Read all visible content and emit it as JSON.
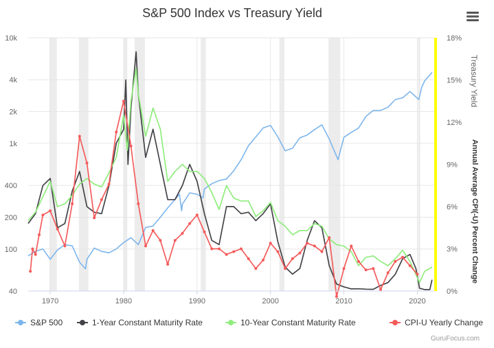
{
  "chart_data": {
    "type": "line",
    "title": "S&P 500 Index vs Treasury Yield",
    "credit": "GuruFocus.com",
    "menu_icon": "hamburger-menu-icon",
    "x_axis": {
      "range": [
        1967,
        2022.3
      ],
      "ticks": [
        "1970",
        "1980",
        "1990",
        "2000",
        "2010",
        "2020"
      ]
    },
    "y_left": {
      "scale": "log",
      "range": [
        40,
        10000
      ],
      "ticks": [
        "10k",
        "4k",
        "2k",
        "1k",
        "400",
        "200",
        "100",
        "40"
      ]
    },
    "y_right": {
      "scale": "linear",
      "range": [
        0,
        18
      ],
      "ticks": [
        "18%",
        "15%",
        "12%",
        "9%",
        "6%",
        "3%",
        "0%"
      ],
      "title": "Treasury Yield"
    },
    "y_right2": {
      "title": "Annual Average CPI(-U) Percent Change",
      "color": "#ffff00"
    },
    "recessions": [
      [
        1969.9,
        1970.9
      ],
      [
        1973.9,
        1975.2
      ],
      [
        1980.0,
        1980.5
      ],
      [
        1981.5,
        1982.9
      ],
      [
        1990.5,
        1991.2
      ],
      [
        2001.2,
        2001.9
      ],
      [
        2007.9,
        2009.5
      ],
      [
        2020.1,
        2020.4
      ]
    ],
    "grid": true,
    "legend": "bottom",
    "series": [
      {
        "name": "S&P 500",
        "axis": "left",
        "color": "#7cb5ec",
        "points": [
          [
            1967,
            86
          ],
          [
            1968,
            95
          ],
          [
            1969,
            100
          ],
          [
            1970,
            80
          ],
          [
            1971,
            98
          ],
          [
            1972,
            110
          ],
          [
            1973,
            107
          ],
          [
            1974,
            75
          ],
          [
            1974.8,
            65
          ],
          [
            1975,
            80
          ],
          [
            1976,
            102
          ],
          [
            1977,
            95
          ],
          [
            1978,
            92
          ],
          [
            1979,
            100
          ],
          [
            1980,
            115
          ],
          [
            1981,
            128
          ],
          [
            1982,
            110
          ],
          [
            1983,
            160
          ],
          [
            1984,
            165
          ],
          [
            1985,
            200
          ],
          [
            1986,
            245
          ],
          [
            1987.6,
            330
          ],
          [
            1987.9,
            230
          ],
          [
            1988,
            265
          ],
          [
            1989,
            340
          ],
          [
            1990,
            330
          ],
          [
            1990.8,
            305
          ],
          [
            1991,
            370
          ],
          [
            1992,
            415
          ],
          [
            1993,
            445
          ],
          [
            1994,
            460
          ],
          [
            1995,
            550
          ],
          [
            1996,
            700
          ],
          [
            1997,
            950
          ],
          [
            1998,
            1150
          ],
          [
            1999,
            1400
          ],
          [
            2000,
            1480
          ],
          [
            2001,
            1150
          ],
          [
            2002,
            850
          ],
          [
            2003,
            900
          ],
          [
            2004,
            1130
          ],
          [
            2005,
            1200
          ],
          [
            2006,
            1350
          ],
          [
            2007,
            1500
          ],
          [
            2008,
            1100
          ],
          [
            2009.2,
            700
          ],
          [
            2010,
            1140
          ],
          [
            2011,
            1270
          ],
          [
            2012,
            1400
          ],
          [
            2013,
            1800
          ],
          [
            2014,
            2050
          ],
          [
            2015,
            2050
          ],
          [
            2016,
            2200
          ],
          [
            2017,
            2600
          ],
          [
            2018,
            2700
          ],
          [
            2019,
            3100
          ],
          [
            2020.2,
            2600
          ],
          [
            2020.6,
            3400
          ],
          [
            2021,
            3900
          ],
          [
            2022,
            4700
          ]
        ]
      },
      {
        "name": "1-Year Constant Maturity Rate",
        "axis": "right",
        "color": "#434348",
        "points": [
          [
            1967,
            4.8
          ],
          [
            1968,
            5.5
          ],
          [
            1969,
            7.5
          ],
          [
            1970,
            8.0
          ],
          [
            1971,
            4.5
          ],
          [
            1972,
            4.8
          ],
          [
            1973,
            7.1
          ],
          [
            1974,
            8.5
          ],
          [
            1975,
            6.0
          ],
          [
            1976,
            5.6
          ],
          [
            1977,
            5.5
          ],
          [
            1978,
            7.5
          ],
          [
            1979,
            10.5
          ],
          [
            1980,
            11.5
          ],
          [
            1980.3,
            15.0
          ],
          [
            1980.6,
            9.0
          ],
          [
            1981,
            13.0
          ],
          [
            1981.7,
            17.0
          ],
          [
            1982,
            14.0
          ],
          [
            1983,
            9.5
          ],
          [
            1984,
            11.5
          ],
          [
            1985,
            9.0
          ],
          [
            1986,
            6.5
          ],
          [
            1987,
            6.5
          ],
          [
            1988,
            7.5
          ],
          [
            1989,
            9.0
          ],
          [
            1990,
            7.8
          ],
          [
            1991,
            5.5
          ],
          [
            1992,
            3.6
          ],
          [
            1993,
            3.3
          ],
          [
            1994,
            6.0
          ],
          [
            1995,
            6.0
          ],
          [
            1996,
            5.5
          ],
          [
            1997,
            5.6
          ],
          [
            1998,
            5.0
          ],
          [
            1999,
            5.5
          ],
          [
            2000,
            6.2
          ],
          [
            2001,
            3.5
          ],
          [
            2002,
            1.7
          ],
          [
            2003,
            1.2
          ],
          [
            2004,
            1.6
          ],
          [
            2005,
            3.6
          ],
          [
            2006,
            5.0
          ],
          [
            2007,
            4.5
          ],
          [
            2008,
            1.8
          ],
          [
            2009,
            0.5
          ],
          [
            2010,
            0.3
          ],
          [
            2011,
            0.15
          ],
          [
            2012,
            0.16
          ],
          [
            2013,
            0.13
          ],
          [
            2014,
            0.12
          ],
          [
            2015,
            0.4
          ],
          [
            2016,
            0.6
          ],
          [
            2017,
            1.2
          ],
          [
            2018,
            2.3
          ],
          [
            2019,
            2.6
          ],
          [
            2019.8,
            1.6
          ],
          [
            2020.3,
            0.2
          ],
          [
            2021,
            0.1
          ],
          [
            2021.7,
            0.1
          ],
          [
            2022,
            0.8
          ]
        ]
      },
      {
        "name": "10-Year Constant Maturity Rate",
        "axis": "right",
        "color": "#90ed7d",
        "points": [
          [
            1967,
            5.0
          ],
          [
            1968,
            5.6
          ],
          [
            1969,
            6.7
          ],
          [
            1970,
            7.8
          ],
          [
            1971,
            6.0
          ],
          [
            1972,
            6.2
          ],
          [
            1973,
            6.8
          ],
          [
            1974,
            7.6
          ],
          [
            1975,
            8.0
          ],
          [
            1976,
            7.6
          ],
          [
            1977,
            7.4
          ],
          [
            1978,
            8.4
          ],
          [
            1979,
            9.5
          ],
          [
            1980,
            12.5
          ],
          [
            1980.5,
            10.0
          ],
          [
            1981,
            13.5
          ],
          [
            1981.7,
            15.8
          ],
          [
            1982,
            14.0
          ],
          [
            1983,
            11.0
          ],
          [
            1984,
            13.0
          ],
          [
            1985,
            11.5
          ],
          [
            1986,
            7.8
          ],
          [
            1987,
            8.5
          ],
          [
            1988,
            9.0
          ],
          [
            1989,
            8.5
          ],
          [
            1990,
            8.5
          ],
          [
            1991,
            8.0
          ],
          [
            1992,
            7.0
          ],
          [
            1993,
            5.8
          ],
          [
            1994,
            7.5
          ],
          [
            1995,
            6.6
          ],
          [
            1996,
            6.4
          ],
          [
            1997,
            6.4
          ],
          [
            1998,
            5.3
          ],
          [
            1999,
            5.7
          ],
          [
            2000,
            6.3
          ],
          [
            2001,
            5.0
          ],
          [
            2002,
            4.6
          ],
          [
            2003,
            4.0
          ],
          [
            2004,
            4.3
          ],
          [
            2005,
            4.3
          ],
          [
            2006,
            4.8
          ],
          [
            2007,
            4.6
          ],
          [
            2008,
            3.7
          ],
          [
            2009,
            3.3
          ],
          [
            2010,
            3.2
          ],
          [
            2011,
            2.8
          ],
          [
            2012,
            1.8
          ],
          [
            2013,
            2.4
          ],
          [
            2014,
            2.5
          ],
          [
            2015,
            2.1
          ],
          [
            2016,
            1.8
          ],
          [
            2017,
            2.3
          ],
          [
            2018,
            2.9
          ],
          [
            2019,
            2.1
          ],
          [
            2020.3,
            0.6
          ],
          [
            2021,
            1.4
          ],
          [
            2022,
            1.7
          ]
        ]
      },
      {
        "name": "CPI-U Yearly Change",
        "axis": "right",
        "color": "#f45b5b",
        "points": [
          [
            1967.3,
            1.4
          ],
          [
            1967.6,
            3.0
          ],
          [
            1968,
            2.6
          ],
          [
            1968.5,
            4.0
          ],
          [
            1969,
            5.4
          ],
          [
            1970,
            5.7
          ],
          [
            1971,
            4.4
          ],
          [
            1972,
            3.2
          ],
          [
            1973,
            6.2
          ],
          [
            1974,
            11.0
          ],
          [
            1975,
            9.1
          ],
          [
            1976,
            5.2
          ],
          [
            1977,
            6.5
          ],
          [
            1978,
            7.6
          ],
          [
            1979,
            11.3
          ],
          [
            1980,
            13.5
          ],
          [
            1981,
            10.3
          ],
          [
            1982,
            6.2
          ],
          [
            1983,
            3.2
          ],
          [
            1984,
            4.3
          ],
          [
            1985,
            3.6
          ],
          [
            1986,
            1.9
          ],
          [
            1987,
            3.6
          ],
          [
            1988,
            4.1
          ],
          [
            1989,
            4.8
          ],
          [
            1990,
            5.4
          ],
          [
            1991,
            4.2
          ],
          [
            1992,
            3.0
          ],
          [
            1993,
            3.0
          ],
          [
            1994,
            2.6
          ],
          [
            1995,
            2.8
          ],
          [
            1996,
            3.0
          ],
          [
            1997,
            2.3
          ],
          [
            1998,
            1.6
          ],
          [
            1999,
            2.2
          ],
          [
            2000,
            3.4
          ],
          [
            2001,
            2.8
          ],
          [
            2002,
            1.6
          ],
          [
            2003,
            2.3
          ],
          [
            2004,
            2.7
          ],
          [
            2005,
            3.4
          ],
          [
            2006,
            3.2
          ],
          [
            2007,
            2.8
          ],
          [
            2008,
            3.8
          ],
          [
            2009,
            -0.4
          ],
          [
            2010,
            1.6
          ],
          [
            2011,
            3.2
          ],
          [
            2012,
            2.1
          ],
          [
            2013,
            1.5
          ],
          [
            2014,
            1.6
          ],
          [
            2015,
            0.1
          ],
          [
            2016,
            1.3
          ],
          [
            2017,
            2.1
          ],
          [
            2018,
            2.4
          ],
          [
            2019,
            1.8
          ],
          [
            2020,
            1.2
          ]
        ]
      }
    ]
  }
}
